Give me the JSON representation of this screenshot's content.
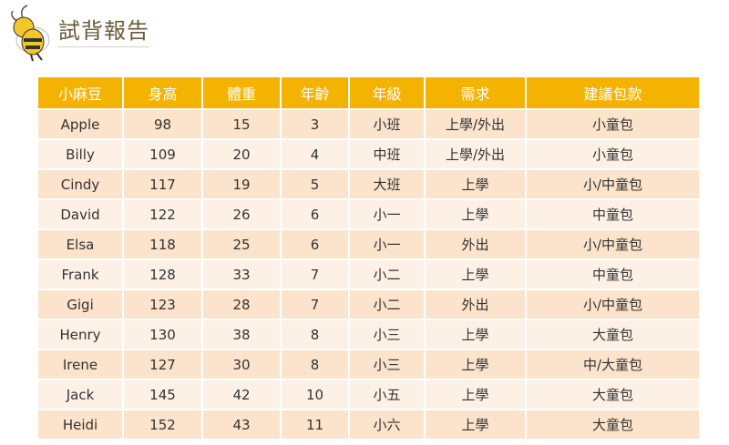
{
  "header": {
    "title": "試背報告"
  },
  "table": {
    "columns": [
      "小麻豆",
      "身高",
      "體重",
      "年齡",
      "年級",
      "需求",
      "建議包款"
    ],
    "rows": [
      [
        "Apple",
        "98",
        "15",
        "3",
        "小班",
        "上學/外出",
        "小童包"
      ],
      [
        "Billy",
        "109",
        "20",
        "4",
        "中班",
        "上學/外出",
        "小童包"
      ],
      [
        "Cindy",
        "117",
        "19",
        "5",
        "大班",
        "上學",
        "小/中童包"
      ],
      [
        "David",
        "122",
        "26",
        "6",
        "小一",
        "上學",
        "中童包"
      ],
      [
        "Elsa",
        "118",
        "25",
        "6",
        "小一",
        "外出",
        "小/中童包"
      ],
      [
        "Frank",
        "128",
        "33",
        "7",
        "小二",
        "上學",
        "中童包"
      ],
      [
        "Gigi",
        "123",
        "28",
        "7",
        "小二",
        "外出",
        "小/中童包"
      ],
      [
        "Henry",
        "130",
        "38",
        "8",
        "小三",
        "上學",
        "大童包"
      ],
      [
        "Irene",
        "127",
        "30",
        "8",
        "小三",
        "上學",
        "中/大童包"
      ],
      [
        "Jack",
        "145",
        "42",
        "10",
        "小五",
        "上學",
        "大童包"
      ],
      [
        "Heidi",
        "152",
        "43",
        "11",
        "小六",
        "上學",
        "大童包"
      ]
    ]
  },
  "colors": {
    "header": "#f5b301",
    "row_odd": "#fce3cb",
    "row_even": "#fdf1e6"
  }
}
